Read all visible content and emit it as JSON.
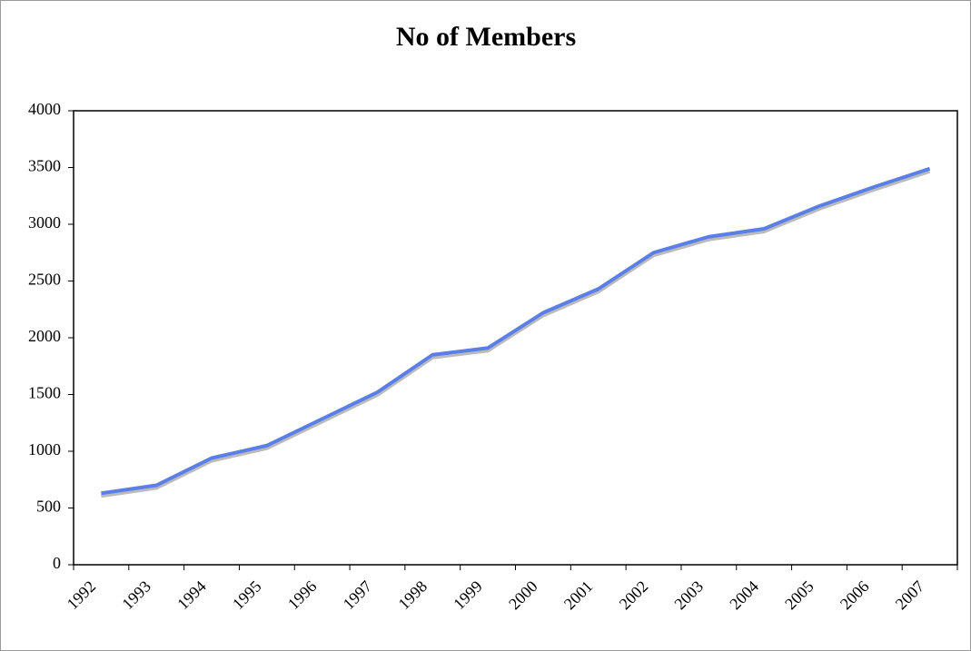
{
  "chart_data": {
    "type": "line",
    "title": "No of Members",
    "categories": [
      "1992",
      "1993",
      "1994",
      "1995",
      "1996",
      "1997",
      "1998",
      "1999",
      "2000",
      "2001",
      "2002",
      "2003",
      "2004",
      "2005",
      "2006",
      "2007"
    ],
    "series": [
      {
        "name": "No of Members",
        "color": "#5b7fe8",
        "values": [
          630,
          700,
          940,
          1050,
          1285,
          1520,
          1850,
          1910,
          2220,
          2430,
          2750,
          2890,
          2960,
          3160,
          3330,
          3490
        ]
      }
    ],
    "ylim": [
      0,
      4000
    ],
    "yticks": [
      0,
      500,
      1000,
      1500,
      2000,
      2500,
      3000,
      3500,
      4000
    ]
  }
}
